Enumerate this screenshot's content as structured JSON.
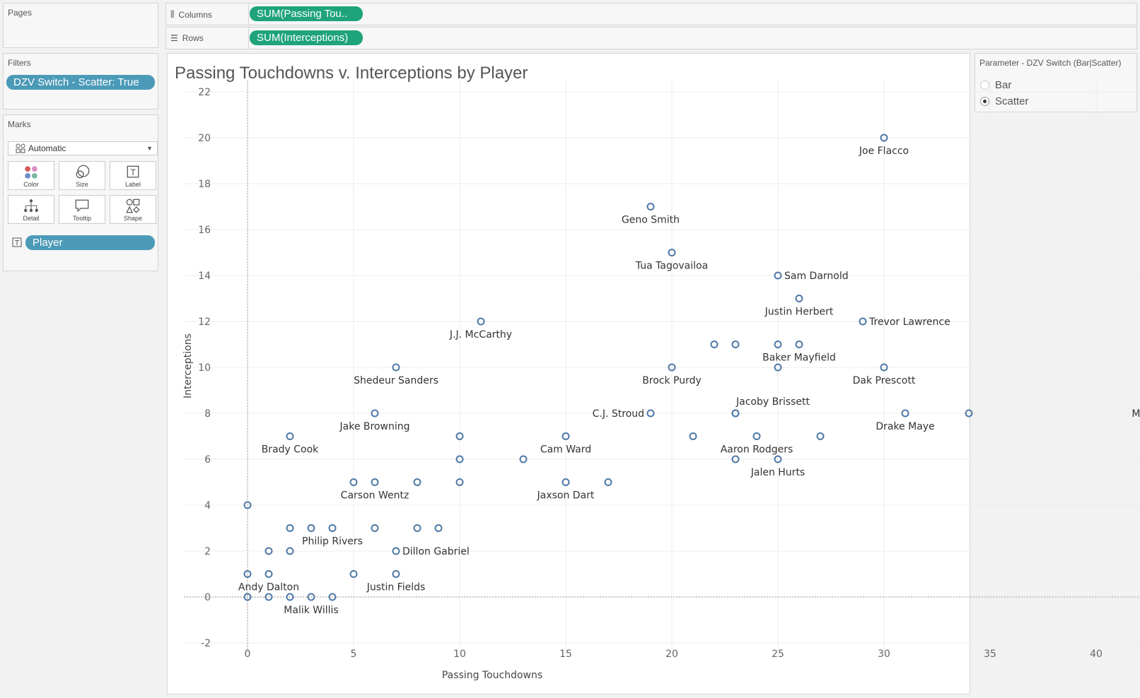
{
  "pages": {
    "title": "Pages"
  },
  "columns_shelf": {
    "label": "Columns",
    "pill": "SUM(Passing Tou.."
  },
  "rows_shelf": {
    "label": "Rows",
    "pill": "SUM(Interceptions)"
  },
  "filters": {
    "title": "Filters",
    "pill": "DZV Switch - Scatter: True"
  },
  "marks": {
    "title": "Marks",
    "type_selected": "Automatic",
    "buttons": [
      "Color",
      "Size",
      "Label",
      "Detail",
      "Tooltip",
      "Shape"
    ],
    "field_pill": "Player"
  },
  "parameter": {
    "title": "Parameter - DZV Switch (Bar|Scatter)",
    "options": [
      {
        "label": "Bar",
        "selected": false
      },
      {
        "label": "Scatter",
        "selected": true
      }
    ]
  },
  "colors": {
    "mark": "#4e79a7",
    "green_pill": "#1fa37a",
    "blue_pill": "#4b9ab8"
  },
  "chart_data": {
    "type": "scatter",
    "title": "Passing Touchdowns v. Interceptions by Player",
    "xlabel": "Passing Touchdowns",
    "ylabel": "Interceptions",
    "xlim": [
      -3,
      49
    ],
    "ylim": [
      -2.5,
      22.5
    ],
    "xticks": [
      0,
      5,
      10,
      15,
      20,
      25,
      30,
      35,
      40,
      45
    ],
    "yticks": [
      -2,
      0,
      2,
      4,
      6,
      8,
      10,
      12,
      14,
      16,
      18,
      20,
      22
    ],
    "grid": true,
    "labeled_points": [
      {
        "label": "Joe Flacco",
        "x": 30,
        "y": 20,
        "pos": "below"
      },
      {
        "label": "Geno Smith",
        "x": 19,
        "y": 17,
        "pos": "below"
      },
      {
        "label": "Tua Tagovailoa",
        "x": 20,
        "y": 15,
        "pos": "below"
      },
      {
        "label": "Sam Darnold",
        "x": 25,
        "y": 14,
        "pos": "right"
      },
      {
        "label": "Justin Herbert",
        "x": 26,
        "y": 13,
        "pos": "below"
      },
      {
        "label": "Trevor Lawrence",
        "x": 29,
        "y": 12,
        "pos": "right"
      },
      {
        "label": "J.J. McCarthy",
        "x": 11,
        "y": 12,
        "pos": "below"
      },
      {
        "label": "Baker Mayfield",
        "x": 26,
        "y": 11,
        "pos": "below"
      },
      {
        "label": "Shedeur Sanders",
        "x": 7,
        "y": 10,
        "pos": "below"
      },
      {
        "label": "Brock Purdy",
        "x": 20,
        "y": 10,
        "pos": "below"
      },
      {
        "label": "Dak Prescott",
        "x": 30,
        "y": 10,
        "pos": "below"
      },
      {
        "label": "Jacoby Brissett",
        "x": 23,
        "y": 8,
        "pos": "above"
      },
      {
        "label": "C.J. Stroud",
        "x": 19,
        "y": 8,
        "pos": "left"
      },
      {
        "label": "Matthew Stafford",
        "x": 46,
        "y": 8,
        "pos": "left"
      },
      {
        "label": "Drake Maye",
        "x": 31,
        "y": 8,
        "pos": "below"
      },
      {
        "label": "Jake Browning",
        "x": 6,
        "y": 8,
        "pos": "below"
      },
      {
        "label": "Brady Cook",
        "x": 2,
        "y": 7,
        "pos": "below"
      },
      {
        "label": "Cam Ward",
        "x": 15,
        "y": 7,
        "pos": "below"
      },
      {
        "label": "Aaron Rodgers",
        "x": 24,
        "y": 7,
        "pos": "below"
      },
      {
        "label": "Jalen Hurts",
        "x": 25,
        "y": 6,
        "pos": "below"
      },
      {
        "label": "Carson Wentz",
        "x": 6,
        "y": 5,
        "pos": "below"
      },
      {
        "label": "Jaxson Dart",
        "x": 15,
        "y": 5,
        "pos": "below"
      },
      {
        "label": "Philip Rivers",
        "x": 4,
        "y": 3,
        "pos": "below"
      },
      {
        "label": "Dillon Gabriel",
        "x": 7,
        "y": 2,
        "pos": "right"
      },
      {
        "label": "Andy Dalton",
        "x": 1,
        "y": 1,
        "pos": "below"
      },
      {
        "label": "Justin Fields",
        "x": 7,
        "y": 1,
        "pos": "below"
      },
      {
        "label": "Malik Willis",
        "x": 3,
        "y": 0,
        "pos": "below"
      }
    ],
    "unlabeled_points": [
      {
        "x": 22,
        "y": 11
      },
      {
        "x": 23,
        "y": 11
      },
      {
        "x": 25,
        "y": 11
      },
      {
        "x": 25,
        "y": 10
      },
      {
        "x": 34,
        "y": 8
      },
      {
        "x": 23,
        "y": 8
      },
      {
        "x": 10,
        "y": 7
      },
      {
        "x": 21,
        "y": 7
      },
      {
        "x": 27,
        "y": 7
      },
      {
        "x": 10,
        "y": 6
      },
      {
        "x": 13,
        "y": 6
      },
      {
        "x": 23,
        "y": 6
      },
      {
        "x": 5,
        "y": 5
      },
      {
        "x": 8,
        "y": 5
      },
      {
        "x": 10,
        "y": 5
      },
      {
        "x": 17,
        "y": 5
      },
      {
        "x": 0,
        "y": 4
      },
      {
        "x": 2,
        "y": 3
      },
      {
        "x": 3,
        "y": 3
      },
      {
        "x": 6,
        "y": 3
      },
      {
        "x": 8,
        "y": 3
      },
      {
        "x": 9,
        "y": 3
      },
      {
        "x": 1,
        "y": 2
      },
      {
        "x": 2,
        "y": 2
      },
      {
        "x": 0,
        "y": 1
      },
      {
        "x": 5,
        "y": 1
      },
      {
        "x": 0,
        "y": 0
      },
      {
        "x": 1,
        "y": 0
      },
      {
        "x": 2,
        "y": 0
      },
      {
        "x": 4,
        "y": 0
      }
    ]
  }
}
